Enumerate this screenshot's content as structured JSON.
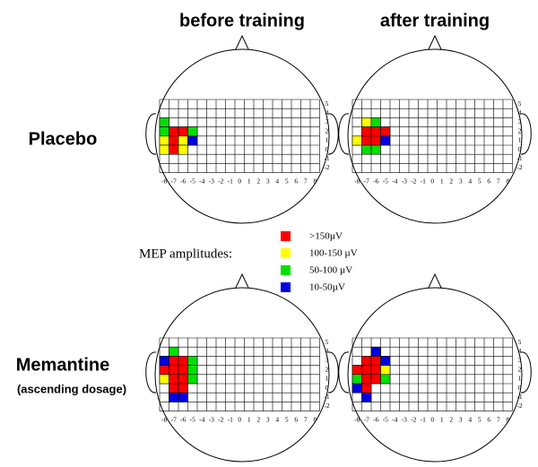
{
  "header": {
    "before": "before training",
    "after": "after training"
  },
  "grid": {
    "xticks": [
      -8,
      -7,
      -6,
      -5,
      -4,
      -3,
      -2,
      -1,
      0,
      1,
      2,
      3,
      4,
      5,
      6,
      7,
      8
    ],
    "yticks": [
      5,
      4,
      3,
      2,
      1,
      0,
      -1,
      -2
    ]
  },
  "legend": {
    "title": "MEP amplitudes:",
    "items": [
      {
        "label": ">150µV",
        "color": "#ff0000"
      },
      {
        "label": "100-150 µV",
        "color": "#ffff00"
      },
      {
        "label": "50-100 µV",
        "color": "#00e000"
      },
      {
        "label": "10-50µV",
        "color": "#0000e0"
      }
    ]
  },
  "rows": [
    {
      "label": "Placebo",
      "panels": [
        {
          "cells": [
            {
              "x": -8,
              "y": 3,
              "color": "#00e000"
            },
            {
              "x": -8,
              "y": 2,
              "color": "#00e000"
            },
            {
              "x": -7,
              "y": 2,
              "color": "#ff0000"
            },
            {
              "x": -6,
              "y": 2,
              "color": "#ff0000"
            },
            {
              "x": -5,
              "y": 2,
              "color": "#00e000"
            },
            {
              "x": -8,
              "y": 1,
              "color": "#ffff00"
            },
            {
              "x": -7,
              "y": 1,
              "color": "#ff0000"
            },
            {
              "x": -6,
              "y": 1,
              "color": "#ffff00"
            },
            {
              "x": -5,
              "y": 1,
              "color": "#0000e0"
            },
            {
              "x": -8,
              "y": 0,
              "color": "#ffff00"
            },
            {
              "x": -7,
              "y": 0,
              "color": "#ff0000"
            },
            {
              "x": -6,
              "y": 0,
              "color": "#ffff00"
            }
          ]
        },
        {
          "cells": [
            {
              "x": -7,
              "y": 3,
              "color": "#ffff00"
            },
            {
              "x": -6,
              "y": 3,
              "color": "#00e000"
            },
            {
              "x": -7,
              "y": 2,
              "color": "#ff0000"
            },
            {
              "x": -6,
              "y": 2,
              "color": "#ff0000"
            },
            {
              "x": -5,
              "y": 2,
              "color": "#ff0000"
            },
            {
              "x": -8,
              "y": 1,
              "color": "#ffff00"
            },
            {
              "x": -7,
              "y": 1,
              "color": "#ff0000"
            },
            {
              "x": -6,
              "y": 1,
              "color": "#ff0000"
            },
            {
              "x": -5,
              "y": 1,
              "color": "#0000e0"
            },
            {
              "x": -7,
              "y": 0,
              "color": "#00e000"
            },
            {
              "x": -6,
              "y": 0,
              "color": "#00e000"
            }
          ]
        }
      ]
    },
    {
      "label": "Memantine",
      "sublabel": "(ascending dosage)",
      "panels": [
        {
          "cells": [
            {
              "x": -7,
              "y": 4,
              "color": "#00e000"
            },
            {
              "x": -8,
              "y": 3,
              "color": "#0000e0"
            },
            {
              "x": -7,
              "y": 3,
              "color": "#ff0000"
            },
            {
              "x": -6,
              "y": 3,
              "color": "#ff0000"
            },
            {
              "x": -5,
              "y": 3,
              "color": "#00e000"
            },
            {
              "x": -8,
              "y": 2,
              "color": "#ff0000"
            },
            {
              "x": -7,
              "y": 2,
              "color": "#ff0000"
            },
            {
              "x": -6,
              "y": 2,
              "color": "#ff0000"
            },
            {
              "x": -5,
              "y": 2,
              "color": "#00e000"
            },
            {
              "x": -8,
              "y": 1,
              "color": "#ffff00"
            },
            {
              "x": -7,
              "y": 1,
              "color": "#ff0000"
            },
            {
              "x": -6,
              "y": 1,
              "color": "#ff0000"
            },
            {
              "x": -5,
              "y": 1,
              "color": "#00e000"
            },
            {
              "x": -7,
              "y": 0,
              "color": "#ff0000"
            },
            {
              "x": -6,
              "y": 0,
              "color": "#ff0000"
            },
            {
              "x": -7,
              "y": -1,
              "color": "#0000e0"
            },
            {
              "x": -6,
              "y": -1,
              "color": "#0000e0"
            }
          ]
        },
        {
          "cells": [
            {
              "x": -6,
              "y": 4,
              "color": "#0000e0"
            },
            {
              "x": -7,
              "y": 3,
              "color": "#ff0000"
            },
            {
              "x": -6,
              "y": 3,
              "color": "#ff0000"
            },
            {
              "x": -5,
              "y": 3,
              "color": "#0000e0"
            },
            {
              "x": -8,
              "y": 2,
              "color": "#ff0000"
            },
            {
              "x": -7,
              "y": 2,
              "color": "#ff0000"
            },
            {
              "x": -6,
              "y": 2,
              "color": "#ff0000"
            },
            {
              "x": -5,
              "y": 2,
              "color": "#ffff00"
            },
            {
              "x": -8,
              "y": 1,
              "color": "#00e000"
            },
            {
              "x": -7,
              "y": 1,
              "color": "#ff0000"
            },
            {
              "x": -6,
              "y": 1,
              "color": "#ff0000"
            },
            {
              "x": -5,
              "y": 1,
              "color": "#00e000"
            },
            {
              "x": -8,
              "y": 0,
              "color": "#0000e0"
            },
            {
              "x": -7,
              "y": 0,
              "color": "#ff0000"
            },
            {
              "x": -7,
              "y": -1,
              "color": "#0000e0"
            }
          ]
        }
      ]
    }
  ]
}
